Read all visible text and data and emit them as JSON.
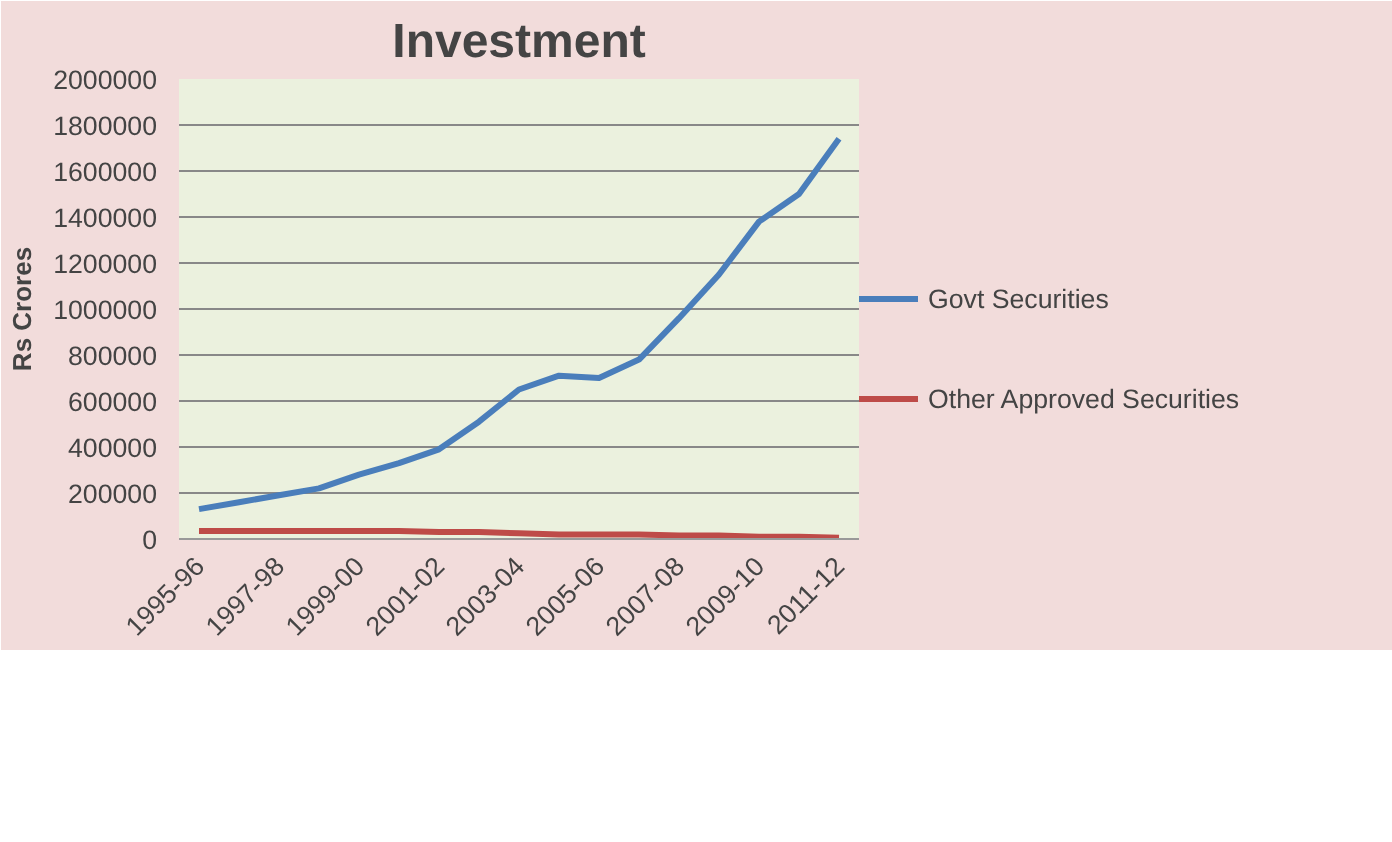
{
  "chart_data": {
    "type": "line",
    "title": "Investment",
    "ylabel": "Rs Crores",
    "categories": [
      "1995-96",
      null,
      "1997-98",
      null,
      "1999-00",
      null,
      "2001-02",
      null,
      "2003-04",
      null,
      "2005-06",
      null,
      "2007-08",
      null,
      "2009-10",
      null,
      "2011-12"
    ],
    "series": [
      {
        "name": "Govt Securities",
        "color": "#4a7ebb",
        "values": [
          130000,
          160000,
          190000,
          220000,
          280000,
          330000,
          390000,
          510000,
          650000,
          710000,
          700000,
          780000,
          960000,
          1150000,
          1380000,
          1500000,
          1740000
        ]
      },
      {
        "name": "Other Approved Securities",
        "color": "#be4b48",
        "values": [
          35000,
          35000,
          35000,
          35000,
          35000,
          35000,
          30000,
          30000,
          25000,
          20000,
          20000,
          20000,
          15000,
          15000,
          10000,
          10000,
          5000
        ]
      }
    ],
    "ylim": [
      0,
      2000000
    ],
    "yticks": [
      0,
      200000,
      400000,
      600000,
      800000,
      1000000,
      1200000,
      1400000,
      1600000,
      1800000,
      2000000
    ],
    "grid": "y",
    "legend": "right",
    "marker": "none",
    "line_style": "solid"
  }
}
